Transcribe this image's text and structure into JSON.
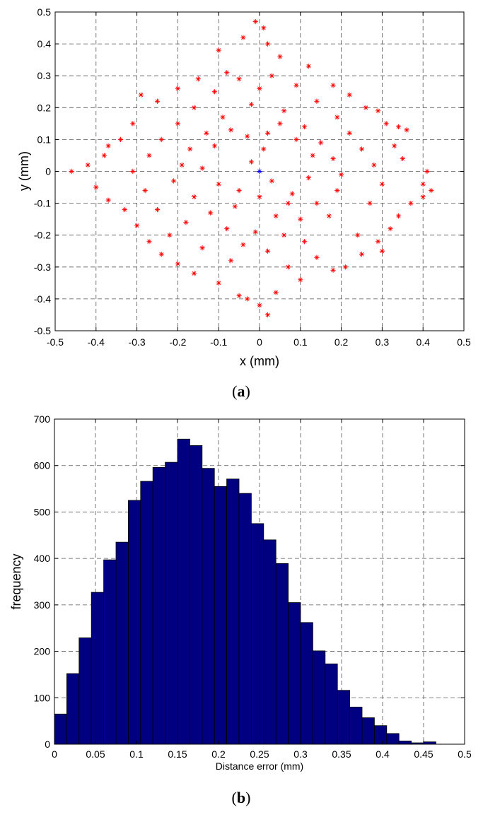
{
  "figure": {
    "caption_a_prefix": "(",
    "caption_a_letter": "a",
    "caption_a_suffix": ")",
    "caption_b_prefix": "(",
    "caption_b_letter": "b",
    "caption_b_suffix": ")"
  },
  "chart_data": [
    {
      "type": "scatter",
      "title": "",
      "xlabel": "x (mm)",
      "ylabel": "y (mm)",
      "xlim": [
        -0.5,
        0.5
      ],
      "ylim": [
        -0.5,
        0.5
      ],
      "xticks": [
        -0.5,
        -0.4,
        -0.3,
        -0.2,
        -0.1,
        0,
        0.1,
        0.2,
        0.3,
        0.4,
        0.5
      ],
      "xtick_labels": [
        "-0.5",
        "-0.4",
        "-0.3",
        "-0.2",
        "-0.1",
        "0",
        "0.1",
        "0.2",
        "0.3",
        "0.4",
        "0.5"
      ],
      "yticks": [
        -0.5,
        -0.4,
        -0.3,
        -0.2,
        -0.1,
        0,
        0.1,
        0.2,
        0.3,
        0.4,
        0.5
      ],
      "ytick_labels": [
        "-0.5",
        "-0.4",
        "-0.3",
        "-0.2",
        "-0.1",
        "0",
        "0.1",
        "0.2",
        "0.3",
        "0.4",
        "0.5"
      ],
      "grid": true,
      "marker": "asterisk",
      "color": "#ff0000",
      "center_marker": {
        "x": 0,
        "y": 0,
        "color": "#0000ff"
      },
      "points": [
        [
          0.01,
          0.45
        ],
        [
          -0.01,
          0.47
        ],
        [
          -0.04,
          0.42
        ],
        [
          0.02,
          0.4
        ],
        [
          -0.1,
          0.38
        ],
        [
          0.05,
          0.36
        ],
        [
          -0.08,
          0.31
        ],
        [
          0.12,
          0.33
        ],
        [
          -0.15,
          0.29
        ],
        [
          0.18,
          0.27
        ],
        [
          -0.2,
          0.26
        ],
        [
          0.22,
          0.24
        ],
        [
          -0.25,
          0.22
        ],
        [
          -0.29,
          0.24
        ],
        [
          0.26,
          0.2
        ],
        [
          0.29,
          0.19
        ],
        [
          -0.31,
          0.15
        ],
        [
          0.31,
          0.15
        ],
        [
          0.34,
          0.14
        ],
        [
          0.36,
          0.13
        ],
        [
          -0.34,
          0.1
        ],
        [
          0.33,
          0.08
        ],
        [
          -0.37,
          0.08
        ],
        [
          -0.38,
          0.05
        ],
        [
          0.35,
          0.04
        ],
        [
          -0.42,
          0.02
        ],
        [
          -0.46,
          0.0
        ],
        [
          0.41,
          0.0
        ],
        [
          0.4,
          -0.04
        ],
        [
          0.4,
          -0.08
        ],
        [
          0.42,
          -0.06
        ],
        [
          -0.4,
          -0.05
        ],
        [
          -0.37,
          -0.09
        ],
        [
          -0.33,
          -0.12
        ],
        [
          0.37,
          -0.1
        ],
        [
          0.34,
          -0.14
        ],
        [
          -0.3,
          -0.17
        ],
        [
          0.32,
          -0.18
        ],
        [
          -0.27,
          -0.22
        ],
        [
          0.29,
          -0.22
        ],
        [
          -0.24,
          -0.26
        ],
        [
          0.25,
          -0.26
        ],
        [
          0.3,
          -0.25
        ],
        [
          -0.2,
          -0.29
        ],
        [
          0.21,
          -0.3
        ],
        [
          -0.16,
          -0.32
        ],
        [
          0.18,
          -0.31
        ],
        [
          -0.1,
          -0.35
        ],
        [
          0.1,
          -0.34
        ],
        [
          -0.05,
          -0.39
        ],
        [
          0.04,
          -0.38
        ],
        [
          0.0,
          -0.42
        ],
        [
          0.02,
          -0.45
        ],
        [
          -0.03,
          -0.4
        ],
        [
          0.07,
          -0.3
        ],
        [
          -0.07,
          -0.28
        ],
        [
          0.14,
          -0.27
        ],
        [
          -0.14,
          -0.24
        ],
        [
          0.11,
          -0.22
        ],
        [
          -0.22,
          -0.2
        ],
        [
          0.24,
          -0.2
        ],
        [
          -0.18,
          -0.16
        ],
        [
          0.17,
          -0.14
        ],
        [
          -0.25,
          -0.12
        ],
        [
          0.27,
          -0.1
        ],
        [
          -0.28,
          -0.06
        ],
        [
          0.3,
          -0.04
        ],
        [
          -0.31,
          0.0
        ],
        [
          0.28,
          0.02
        ],
        [
          -0.27,
          0.05
        ],
        [
          0.25,
          0.07
        ],
        [
          -0.24,
          0.1
        ],
        [
          0.22,
          0.12
        ],
        [
          -0.2,
          0.15
        ],
        [
          0.19,
          0.17
        ],
        [
          -0.16,
          0.2
        ],
        [
          0.14,
          0.22
        ],
        [
          -0.11,
          0.25
        ],
        [
          0.09,
          0.27
        ],
        [
          -0.05,
          0.29
        ],
        [
          0.03,
          0.3
        ],
        [
          0.0,
          0.26
        ],
        [
          -0.02,
          0.21
        ],
        [
          0.06,
          0.19
        ],
        [
          -0.09,
          0.17
        ],
        [
          0.11,
          0.14
        ],
        [
          -0.13,
          0.12
        ],
        [
          0.15,
          0.09
        ],
        [
          -0.17,
          0.07
        ],
        [
          0.18,
          0.04
        ],
        [
          -0.19,
          0.02
        ],
        [
          0.2,
          -0.01
        ],
        [
          -0.21,
          -0.03
        ],
        [
          0.19,
          -0.06
        ],
        [
          -0.16,
          -0.08
        ],
        [
          0.14,
          -0.1
        ],
        [
          -0.12,
          -0.13
        ],
        [
          0.1,
          -0.15
        ],
        [
          -0.08,
          -0.18
        ],
        [
          0.06,
          -0.2
        ],
        [
          -0.04,
          -0.23
        ],
        [
          0.02,
          -0.25
        ],
        [
          -0.01,
          -0.19
        ],
        [
          0.04,
          -0.14
        ],
        [
          -0.06,
          -0.11
        ],
        [
          0.08,
          -0.07
        ],
        [
          -0.1,
          -0.04
        ],
        [
          0.12,
          -0.02
        ],
        [
          -0.14,
          0.01
        ],
        [
          0.13,
          0.05
        ],
        [
          -0.11,
          0.08
        ],
        [
          0.09,
          0.1
        ],
        [
          -0.07,
          0.13
        ],
        [
          0.05,
          0.15
        ],
        [
          -0.03,
          0.11
        ],
        [
          0.01,
          0.07
        ],
        [
          -0.02,
          0.03
        ],
        [
          0.03,
          -0.03
        ],
        [
          -0.05,
          -0.06
        ],
        [
          0.07,
          -0.1
        ],
        [
          0.0,
          -0.08
        ],
        [
          0.02,
          0.12
        ]
      ]
    },
    {
      "type": "bar",
      "title": "",
      "xlabel": "Distance error (mm)",
      "ylabel": "frequency",
      "xlim": [
        0,
        0.5
      ],
      "ylim": [
        0,
        700
      ],
      "xticks": [
        0,
        0.05,
        0.1,
        0.15,
        0.2,
        0.25,
        0.3,
        0.35,
        0.4,
        0.45,
        0.5
      ],
      "xtick_labels": [
        "0",
        "0.05",
        "0.1",
        "0.15",
        "0.2",
        "0.25",
        "0.3",
        "0.35",
        "0.4",
        "0.45",
        "0.5"
      ],
      "yticks": [
        0,
        100,
        200,
        300,
        400,
        500,
        600,
        700
      ],
      "ytick_labels": [
        "0",
        "100",
        "200",
        "300",
        "400",
        "500",
        "600",
        "700"
      ],
      "grid": true,
      "bar_color": "#000080",
      "bin_width": 0.015,
      "bin_starts": [
        0.0,
        0.015,
        0.03,
        0.045,
        0.06,
        0.075,
        0.09,
        0.105,
        0.12,
        0.135,
        0.15,
        0.165,
        0.18,
        0.195,
        0.21,
        0.225,
        0.24,
        0.255,
        0.27,
        0.285,
        0.3,
        0.315,
        0.33,
        0.345,
        0.36,
        0.375,
        0.39,
        0.405,
        0.42,
        0.435,
        0.45,
        0.465
      ],
      "values": [
        65,
        152,
        229,
        327,
        397,
        435,
        525,
        566,
        596,
        607,
        657,
        643,
        594,
        555,
        571,
        540,
        475,
        440,
        389,
        305,
        262,
        201,
        173,
        116,
        80,
        57,
        40,
        23,
        7,
        3,
        5,
        0
      ]
    }
  ]
}
